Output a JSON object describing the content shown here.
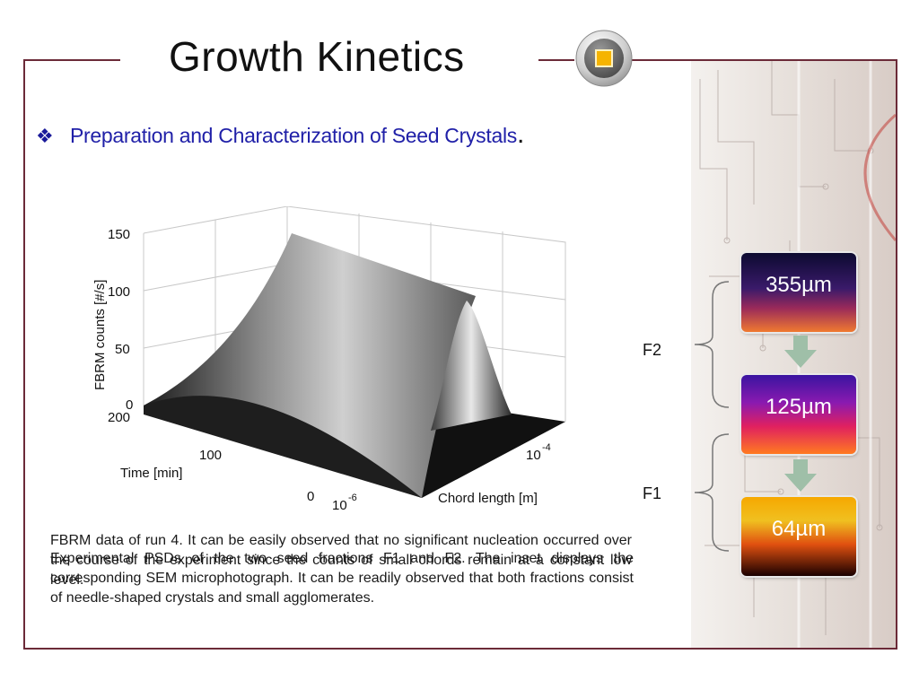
{
  "slide": {
    "title": "Growth Kinetics",
    "subtitle": "Preparation and Characterization of Seed Crystals",
    "subtitle_end": ".",
    "bullet_glyph": "❖",
    "badge_icon": "square-badge-icon",
    "accent_color": "#6b2a38",
    "subtitle_color": "#2020a8"
  },
  "plot": {
    "zlabel": "FBRM counts [#/s]",
    "z_ticks": [
      "150",
      "100",
      "50",
      "0"
    ],
    "time_label": "Time [min]",
    "time_ticks": [
      "200",
      "100",
      "0"
    ],
    "chord_label": "Chord length [m]",
    "chord_ticks": [
      "10",
      "10"
    ],
    "chord_tick_exponents": [
      "-6",
      "-4"
    ]
  },
  "captions": {
    "first": "FBRM data of run 4. It can be easily observed that no significant nucleation occurred over the course of the experiment since the counts of small chords remain at a constant low level.",
    "second": "Experimental PSDs of the two seed fractions F1 and F2. The inset displays the corresponding SEM microphotograph. It can be readily observed that both fractions consist of needle-shaped crystals and small agglomerates."
  },
  "sizes": {
    "items": [
      {
        "label": "355µm"
      },
      {
        "label": "125µm"
      },
      {
        "label": "64µm"
      }
    ],
    "groups": [
      {
        "label": "F2"
      },
      {
        "label": "F1"
      }
    ],
    "arrow_color": "#9fbfa8"
  }
}
